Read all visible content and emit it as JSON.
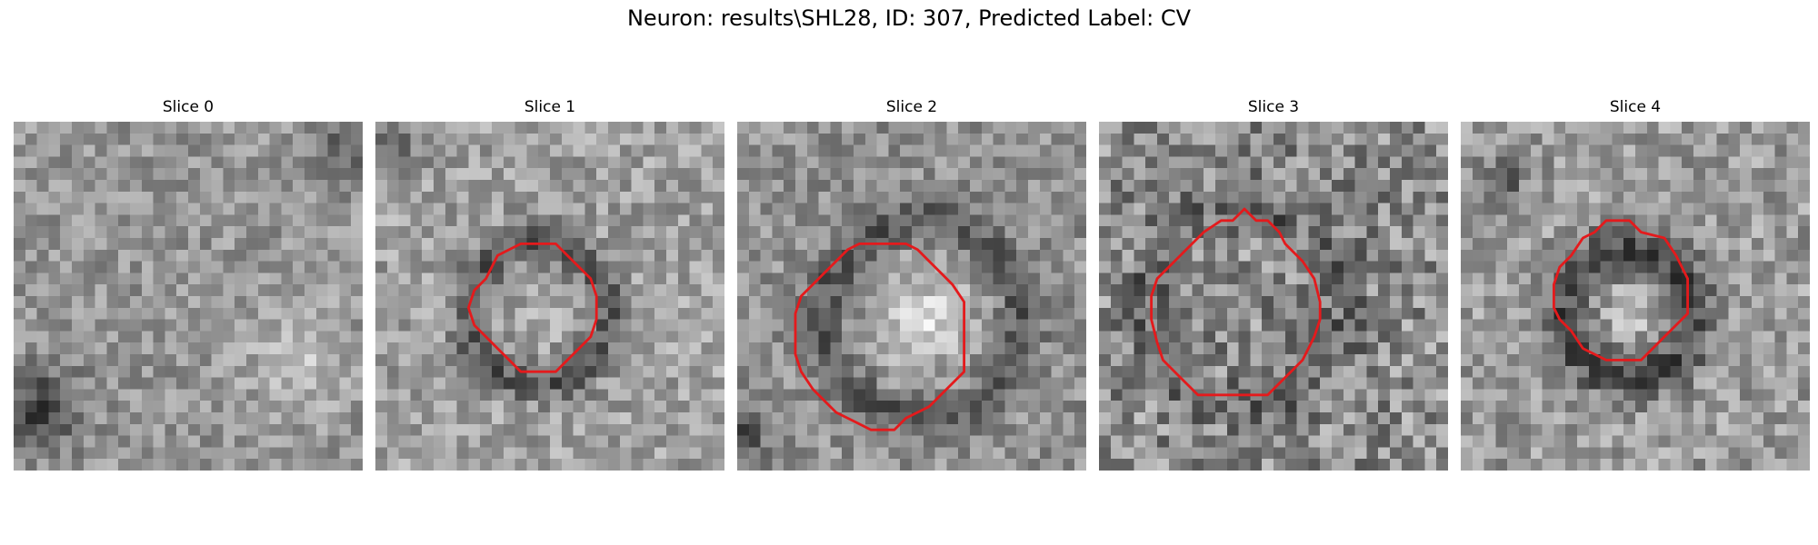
{
  "figure": {
    "title": "Neuron: results\\SHL28, ID: 307, Predicted Label: CV"
  },
  "colors": {
    "roi_outline": "#e41a1c",
    "background": "#ffffff"
  },
  "panels": [
    {
      "title": "Slice 0",
      "has_roi": false,
      "roi_grid": []
    },
    {
      "title": "Slice 1",
      "has_roi": true,
      "roi_grid": [
        [
          13.5,
          10.5
        ],
        [
          15.5,
          10.5
        ],
        [
          16.5,
          11.5
        ],
        [
          17.5,
          12.5
        ],
        [
          18.5,
          13.5
        ],
        [
          19,
          15
        ],
        [
          19,
          17
        ],
        [
          18.5,
          18.5
        ],
        [
          17.5,
          19.5
        ],
        [
          16.5,
          20.5
        ],
        [
          15.5,
          21.5
        ],
        [
          13.5,
          21.5
        ],
        [
          12.5,
          21.5
        ],
        [
          11.5,
          20.5
        ],
        [
          10.5,
          19.5
        ],
        [
          9.5,
          18.5
        ],
        [
          8.5,
          17.5
        ],
        [
          8,
          16
        ],
        [
          8.5,
          14.5
        ],
        [
          9.5,
          13.5
        ],
        [
          10.5,
          11.5
        ],
        [
          11.5,
          11
        ],
        [
          12.5,
          10.5
        ]
      ]
    },
    {
      "title": "Slice 2",
      "has_roi": true,
      "roi_grid": [
        [
          10.5,
          10.5
        ],
        [
          14.5,
          10.5
        ],
        [
          15.5,
          11
        ],
        [
          16.5,
          12
        ],
        [
          17.5,
          13
        ],
        [
          18.5,
          14
        ],
        [
          19.5,
          15.5
        ],
        [
          19.5,
          21.5
        ],
        [
          18.5,
          22.5
        ],
        [
          17.5,
          23.5
        ],
        [
          16.5,
          24.5
        ],
        [
          15.5,
          25
        ],
        [
          14.5,
          25.5
        ],
        [
          13.5,
          26.5
        ],
        [
          11.5,
          26.5
        ],
        [
          10.5,
          26
        ],
        [
          9.5,
          25.5
        ],
        [
          8.5,
          25
        ],
        [
          7.5,
          24
        ],
        [
          6.5,
          23
        ],
        [
          5.5,
          21.5
        ],
        [
          5,
          20
        ],
        [
          5,
          16.5
        ],
        [
          5.5,
          15
        ],
        [
          6.5,
          14
        ],
        [
          7.5,
          13
        ],
        [
          8.5,
          12
        ],
        [
          9.5,
          11
        ]
      ]
    },
    {
      "title": "Slice 3",
      "has_roi": true,
      "roi_grid": [
        [
          12.5,
          7.5
        ],
        [
          13.5,
          8.5
        ],
        [
          14.5,
          8.5
        ],
        [
          15.5,
          9.5
        ],
        [
          16,
          10.5
        ],
        [
          17.5,
          12
        ],
        [
          18.5,
          13.5
        ],
        [
          19,
          15.5
        ],
        [
          19,
          17
        ],
        [
          18.5,
          18.5
        ],
        [
          18,
          19.5
        ],
        [
          17.5,
          20.5
        ],
        [
          16.5,
          21.5
        ],
        [
          15.5,
          22.5
        ],
        [
          14.5,
          23.5
        ],
        [
          13.5,
          23.5
        ],
        [
          11.5,
          23.5
        ],
        [
          10.5,
          23.5
        ],
        [
          9.5,
          23.5
        ],
        [
          8.5,
          23.5
        ],
        [
          7.5,
          22.5
        ],
        [
          6.5,
          21.5
        ],
        [
          5.5,
          20.5
        ],
        [
          5,
          19
        ],
        [
          4.5,
          17
        ],
        [
          4.5,
          15
        ],
        [
          5,
          13.5
        ],
        [
          6,
          12.5
        ],
        [
          7.5,
          11
        ],
        [
          9,
          9.5
        ],
        [
          10.5,
          8.5
        ],
        [
          11.5,
          8.5
        ]
      ]
    },
    {
      "title": "Slice 4",
      "has_roi": true,
      "roi_grid": [
        [
          12.5,
          8.5
        ],
        [
          14.5,
          8.5
        ],
        [
          15.5,
          9.5
        ],
        [
          17.5,
          10
        ],
        [
          18.5,
          11.5
        ],
        [
          19,
          12.5
        ],
        [
          19.5,
          13.5
        ],
        [
          19.5,
          16.5
        ],
        [
          18.5,
          17.5
        ],
        [
          17.5,
          18.5
        ],
        [
          16.5,
          19.5
        ],
        [
          15.5,
          20.5
        ],
        [
          14.5,
          20.5
        ],
        [
          12.5,
          20.5
        ],
        [
          11.5,
          20
        ],
        [
          10.5,
          19.5
        ],
        [
          9.5,
          18
        ],
        [
          8.5,
          17
        ],
        [
          8,
          16
        ],
        [
          8,
          14
        ],
        [
          8.5,
          12.5
        ],
        [
          9.5,
          11.5
        ],
        [
          10.5,
          10
        ],
        [
          11.5,
          9.5
        ]
      ]
    }
  ]
}
